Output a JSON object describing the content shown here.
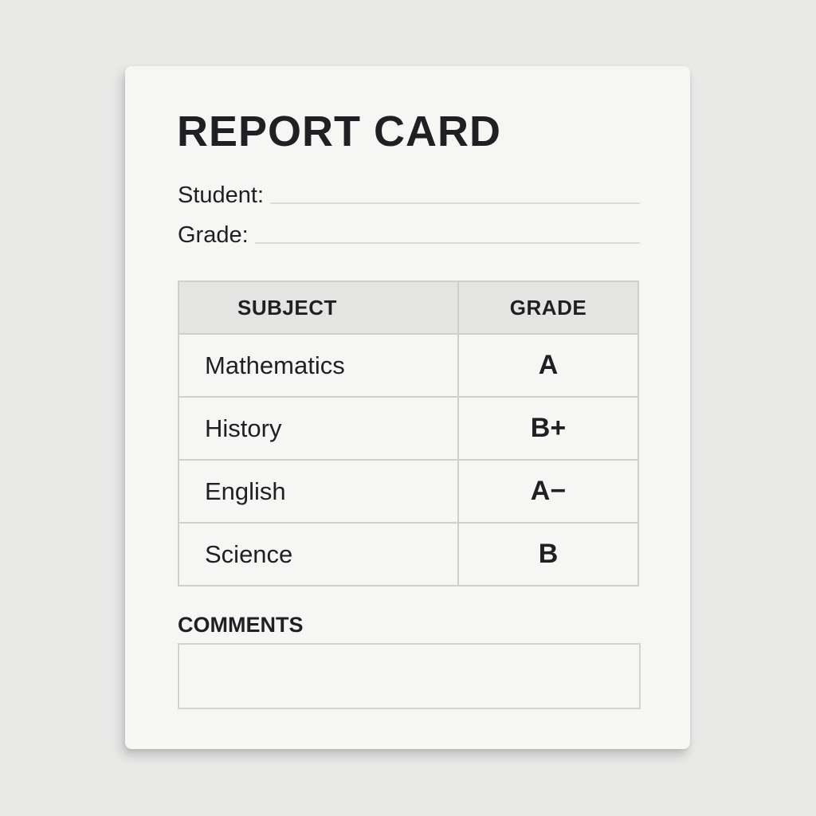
{
  "title": "REPORT CARD",
  "fields": [
    {
      "label": "Student:",
      "value": ""
    },
    {
      "label": "Grade:",
      "value": ""
    }
  ],
  "table": {
    "headers": [
      "SUBJECT",
      "GRADE"
    ],
    "rows": [
      {
        "subject": "Mathematics",
        "grade": "A"
      },
      {
        "subject": "History",
        "grade": "B+"
      },
      {
        "subject": "English",
        "grade": "A−"
      },
      {
        "subject": "Science",
        "grade": "B"
      }
    ]
  },
  "comments": {
    "label": "COMMENTS",
    "value": ""
  }
}
